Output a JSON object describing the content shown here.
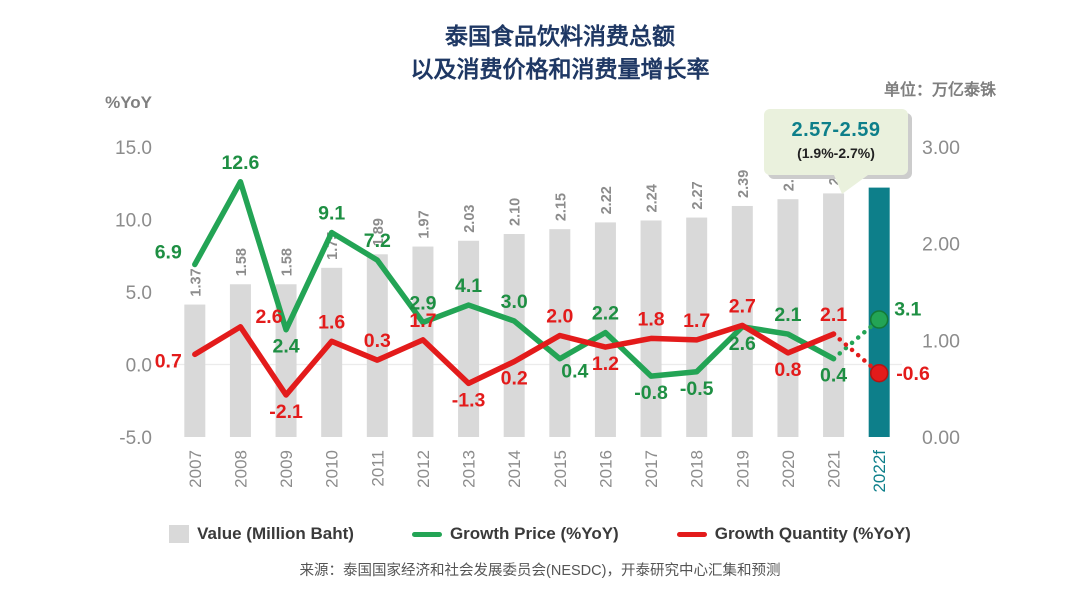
{
  "title": {
    "line1": "泰国食品饮料消费总额",
    "line2": "以及消费价格和消费量增长率"
  },
  "unit_label": "单位：万亿泰铢",
  "callout": {
    "value_range": "2.57-2.59",
    "growth_range": "(1.9%-2.7%)"
  },
  "legend": [
    {
      "label": "Value (Million Baht)",
      "swatch": "bar",
      "color": "#d9d9d9"
    },
    {
      "label": "Growth Price (%YoY)",
      "swatch": "line",
      "color": "#23a455"
    },
    {
      "label": "Growth Quantity (%YoY)",
      "swatch": "line",
      "color": "#e31b1b"
    }
  ],
  "source": "来源：泰国国家经济和社会发展委员会(NESDC)，开泰研究中心汇集和预测",
  "chart_data": {
    "type": "bar",
    "subtype": "combo-bar-line",
    "categories": [
      "2007",
      "2008",
      "2009",
      "2010",
      "2011",
      "2012",
      "2013",
      "2014",
      "2015",
      "2016",
      "2017",
      "2018",
      "2019",
      "2020",
      "2021",
      "2022f"
    ],
    "forecast_index": 15,
    "left_axis": {
      "title": "%YoY",
      "min": -5,
      "max": 15,
      "ticks": [
        15,
        10,
        5,
        0,
        -5
      ]
    },
    "right_axis": {
      "min": 0,
      "max": 3,
      "ticks": [
        3,
        2,
        1,
        0
      ]
    },
    "colors": {
      "bar": "#d9d9d9",
      "forecast_bar": "#0d7f8a",
      "price_line": "#23a455",
      "price_text": "#1e8f43",
      "price_dot_edge": "#137a36",
      "qty_line": "#e31b1b",
      "qty_text": "#e31b1b",
      "qty_dot_edge": "#b31414",
      "tick_text": "#8c8c8c"
    },
    "series": [
      {
        "name": "Value (Million Baht)",
        "type": "bar",
        "axis": "right",
        "values": [
          1.37,
          1.58,
          1.58,
          1.75,
          1.89,
          1.97,
          2.03,
          2.1,
          2.15,
          2.22,
          2.24,
          2.27,
          2.39,
          2.46,
          2.52,
          2.58
        ],
        "forecast_label": "2.57-2.59"
      },
      {
        "name": "Growth Price (%YoY)",
        "type": "line",
        "axis": "left",
        "values": [
          6.9,
          12.6,
          2.4,
          9.1,
          7.2,
          2.9,
          4.1,
          3.0,
          0.4,
          2.2,
          -0.8,
          -0.5,
          2.6,
          2.1,
          0.4,
          3.1
        ],
        "label_pos": [
          "left-above",
          "above",
          "below",
          "above",
          "above",
          "above",
          "above",
          "above",
          "below-right",
          "above",
          "below",
          "below",
          "below",
          "above",
          "below",
          "right-above"
        ]
      },
      {
        "name": "Growth Quantity (%YoY)",
        "type": "line",
        "axis": "left",
        "values": [
          0.7,
          2.6,
          -2.1,
          1.6,
          0.3,
          1.7,
          -1.3,
          0.2,
          2.0,
          1.2,
          1.8,
          1.7,
          2.7,
          0.8,
          2.1,
          -0.6
        ],
        "label_pos": [
          "left-below",
          "right-above",
          "below",
          "above",
          "above",
          "above",
          "below",
          "below",
          "above",
          "below",
          "above",
          "above",
          "above",
          "below",
          "above",
          "right"
        ]
      }
    ]
  }
}
